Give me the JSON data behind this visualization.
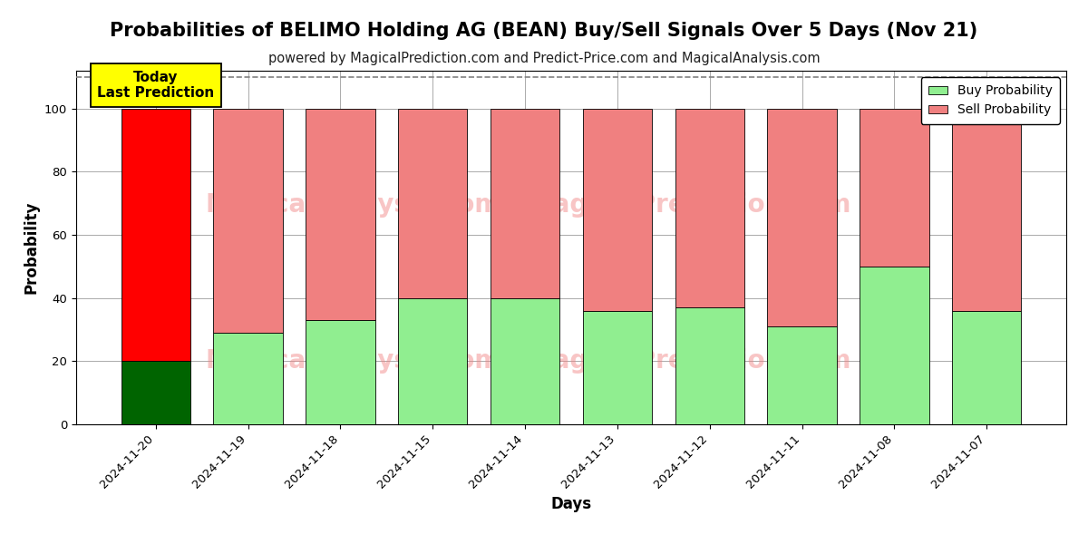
{
  "title": "Probabilities of BELIMO Holding AG (BEAN) Buy/Sell Signals Over 5 Days (Nov 21)",
  "subtitle": "powered by MagicalPrediction.com and Predict-Price.com and MagicalAnalysis.com",
  "xlabel": "Days",
  "ylabel": "Probability",
  "categories": [
    "2024-11-20",
    "2024-11-19",
    "2024-11-18",
    "2024-11-15",
    "2024-11-14",
    "2024-11-13",
    "2024-11-12",
    "2024-11-11",
    "2024-11-08",
    "2024-11-07"
  ],
  "buy_values": [
    20,
    29,
    33,
    40,
    40,
    36,
    37,
    31,
    50,
    36
  ],
  "sell_values": [
    80,
    71,
    67,
    60,
    60,
    64,
    63,
    69,
    50,
    64
  ],
  "buy_colors": [
    "#006400",
    "#90EE90",
    "#90EE90",
    "#90EE90",
    "#90EE90",
    "#90EE90",
    "#90EE90",
    "#90EE90",
    "#90EE90",
    "#90EE90"
  ],
  "sell_colors": [
    "#FF0000",
    "#F08080",
    "#F08080",
    "#F08080",
    "#F08080",
    "#F08080",
    "#F08080",
    "#F08080",
    "#F08080",
    "#F08080"
  ],
  "today_label": "Today\nLast Prediction",
  "today_label_bg": "#FFFF00",
  "legend_buy_label": "Buy Probability",
  "legend_sell_label": "Sell Probability",
  "legend_buy_color": "#90EE90",
  "legend_sell_color": "#F08080",
  "ylim": [
    0,
    112
  ],
  "yticks": [
    0,
    20,
    40,
    60,
    80,
    100
  ],
  "dashed_line_y": 110,
  "background_color": "#ffffff",
  "grid_color": "#aaaaaa",
  "title_fontsize": 15,
  "subtitle_fontsize": 10.5,
  "axis_label_fontsize": 12,
  "tick_fontsize": 9.5
}
